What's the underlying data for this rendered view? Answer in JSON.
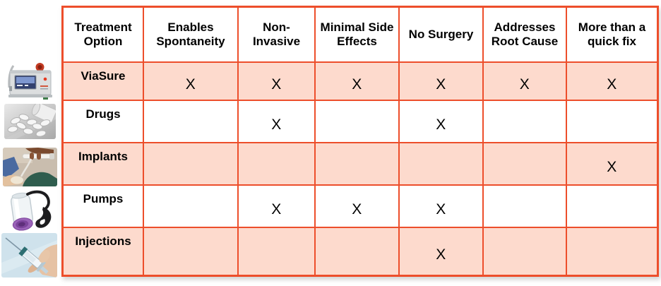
{
  "colors": {
    "table_border": "#ED4E2B",
    "shaded_row_fill": "#FDDACD",
    "plain_row_fill": "#FFFFFF",
    "text": "#000000"
  },
  "row_photos": [
    "viasure-device-photo",
    "pills-photo",
    "implant-hands-photo",
    "vacuum-pump-photo",
    "syringe-injection-photo"
  ],
  "chart_data": {
    "type": "table",
    "title": "",
    "mark_symbol": "X",
    "columns": [
      "Treatment Option",
      "Enables Spontaneity",
      "Non-Invasive",
      "Minimal Side Effects",
      "No Surgery",
      "Addresses Root Cause",
      "More than a quick fix"
    ],
    "rows": [
      {
        "label": "ViaSure",
        "photo": "viasure-device-photo",
        "shaded": true,
        "marks": [
          1,
          1,
          1,
          1,
          1,
          1
        ]
      },
      {
        "label": "Drugs",
        "photo": "pills-photo",
        "shaded": false,
        "marks": [
          0,
          1,
          0,
          1,
          0,
          0
        ]
      },
      {
        "label": "Implants",
        "photo": "implant-hands-photo",
        "shaded": true,
        "marks": [
          0,
          0,
          0,
          0,
          0,
          1
        ]
      },
      {
        "label": "Pumps",
        "photo": "vacuum-pump-photo",
        "shaded": false,
        "marks": [
          0,
          1,
          1,
          1,
          0,
          0
        ]
      },
      {
        "label": "Injections",
        "photo": "syringe-injection-photo",
        "shaded": true,
        "marks": [
          0,
          0,
          0,
          1,
          0,
          0
        ]
      }
    ]
  }
}
